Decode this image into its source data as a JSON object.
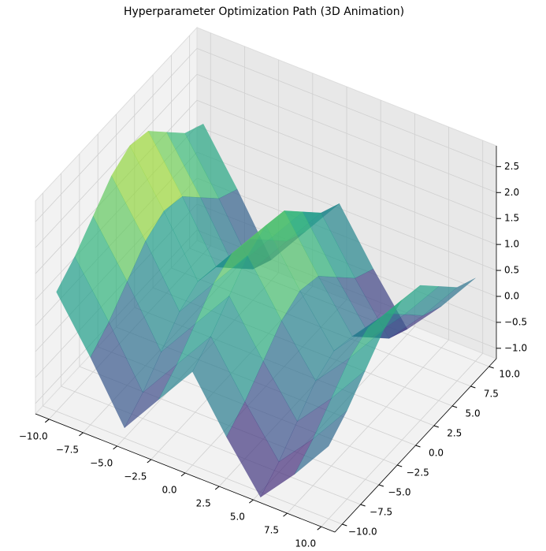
{
  "chart_data": {
    "type": "surface3d",
    "title": "Hyperparameter Optimization Path (3D Animation)",
    "x": [
      -10,
      -7.5,
      -5,
      -2.5,
      0,
      2.5,
      5,
      7.5,
      10
    ],
    "y": [
      -10,
      -7.5,
      -5,
      -2.5,
      0,
      2.5,
      5,
      7.5,
      10
    ],
    "z": [
      [
        1.1,
        0.1,
        -1.0,
        -0.2,
        0.6,
        -0.4,
        -1.3,
        -0.6,
        0.2
      ],
      [
        1.4,
        0.4,
        -0.7,
        0.1,
        0.9,
        -0.1,
        -1.0,
        -0.3,
        0.5
      ],
      [
        1.8,
        0.8,
        -0.3,
        0.5,
        1.3,
        0.3,
        -0.6,
        0.1,
        0.9
      ],
      [
        2.2,
        1.2,
        0.1,
        0.9,
        1.7,
        0.7,
        -0.2,
        0.5,
        1.3
      ],
      [
        2.4,
        1.4,
        0.3,
        1.1,
        1.9,
        0.9,
        0.0,
        0.7,
        1.5
      ],
      [
        2.3,
        1.3,
        0.2,
        1.0,
        1.8,
        0.8,
        -0.1,
        0.6,
        1.4
      ],
      [
        1.9,
        0.9,
        -0.2,
        0.6,
        1.4,
        0.4,
        -0.5,
        0.2,
        1.0
      ],
      [
        1.5,
        0.5,
        -0.6,
        0.2,
        1.0,
        0.0,
        -0.9,
        -0.2,
        0.6
      ],
      [
        1.3,
        0.3,
        -0.8,
        0.0,
        0.8,
        -0.2,
        -1.1,
        -0.4,
        0.4
      ]
    ],
    "cmap": "viridis",
    "alpha": 0.7,
    "grid": true,
    "xlim": [
      -11,
      11
    ],
    "ylim": [
      -11,
      11
    ],
    "zlim": [
      -1.2,
      2.9
    ],
    "xticks": [
      {
        "value": -10,
        "label": "−10.0"
      },
      {
        "value": -7.5,
        "label": "−7.5"
      },
      {
        "value": -5,
        "label": "−5.0"
      },
      {
        "value": -2.5,
        "label": "−2.5"
      },
      {
        "value": 0,
        "label": "0.0"
      },
      2.5,
      {
        "value": 5,
        "label": "5.0"
      },
      7.5,
      {
        "value": 10,
        "label": "10.0"
      }
    ],
    "yticks": [
      {
        "value": -10,
        "label": "−10.0"
      },
      {
        "value": -7.5,
        "label": "−7.5"
      },
      {
        "value": -5,
        "label": "−5.0"
      },
      {
        "value": -2.5,
        "label": "−2.5"
      },
      {
        "value": 0,
        "label": "0.0"
      },
      2.5,
      {
        "value": 5,
        "label": "5.0"
      },
      7.5,
      {
        "value": 10,
        "label": "10.0"
      }
    ],
    "zticks": [
      {
        "value": -1,
        "label": "−1.0"
      },
      {
        "value": -0.5,
        "label": "−0.5"
      },
      {
        "value": 0,
        "label": "0.0"
      },
      0.5,
      {
        "value": 1,
        "label": "1.0"
      },
      1.5,
      {
        "value": 2,
        "label": "2.0"
      },
      2.5
    ]
  }
}
